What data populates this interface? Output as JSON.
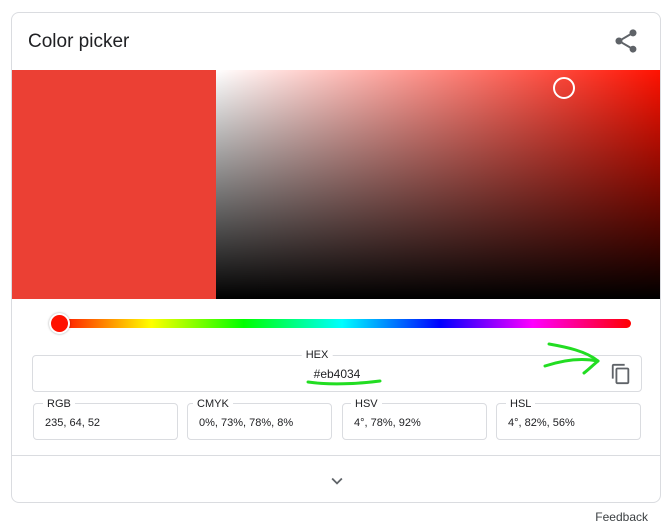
{
  "header": {
    "title": "Color picker",
    "share_icon": "share-icon"
  },
  "color": {
    "current_hex_color": "#eb4034",
    "hue_color": "#ff1100",
    "saturation": 0.78,
    "value": 0.92,
    "hue_position": 0.012
  },
  "hex": {
    "label": "HEX",
    "value": "#eb4034",
    "copy_icon": "copy-icon"
  },
  "formats": {
    "rgb": {
      "label": "RGB",
      "value": "235, 64, 52"
    },
    "cmyk": {
      "label": "CMYK",
      "value": "0%, 73%, 78%, 8%"
    },
    "hsv": {
      "label": "HSV",
      "value": "4°, 78%, 92%"
    },
    "hsl": {
      "label": "HSL",
      "value": "4°, 82%, 56%"
    }
  },
  "footer": {
    "expand_icon": "chevron-down-icon",
    "feedback_label": "Feedback"
  },
  "annotation": {
    "color": "#22dd22"
  }
}
